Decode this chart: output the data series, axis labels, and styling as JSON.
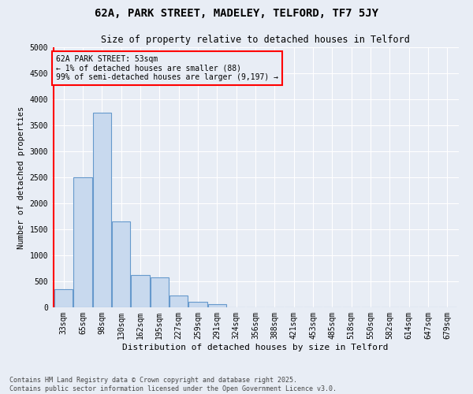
{
  "title": "62A, PARK STREET, MADELEY, TELFORD, TF7 5JY",
  "subtitle": "Size of property relative to detached houses in Telford",
  "xlabel": "Distribution of detached houses by size in Telford",
  "ylabel": "Number of detached properties",
  "bar_color": "#c8d9ee",
  "bar_edge_color": "#6699cc",
  "bg_color": "#e8edf5",
  "grid_color": "#ffffff",
  "categories": [
    "33sqm",
    "65sqm",
    "98sqm",
    "130sqm",
    "162sqm",
    "195sqm",
    "227sqm",
    "259sqm",
    "291sqm",
    "324sqm",
    "356sqm",
    "388sqm",
    "421sqm",
    "453sqm",
    "485sqm",
    "518sqm",
    "550sqm",
    "582sqm",
    "614sqm",
    "647sqm",
    "679sqm"
  ],
  "values": [
    350,
    2500,
    3750,
    1650,
    620,
    580,
    220,
    100,
    60,
    0,
    0,
    0,
    0,
    0,
    0,
    0,
    0,
    0,
    0,
    0,
    0
  ],
  "ylim": [
    0,
    5000
  ],
  "yticks": [
    0,
    500,
    1000,
    1500,
    2000,
    2500,
    3000,
    3500,
    4000,
    4500,
    5000
  ],
  "annotation_text": "62A PARK STREET: 53sqm\n← 1% of detached houses are smaller (88)\n99% of semi-detached houses are larger (9,197) →",
  "footnote": "Contains HM Land Registry data © Crown copyright and database right 2025.\nContains public sector information licensed under the Open Government Licence v3.0.",
  "title_fontsize": 10,
  "subtitle_fontsize": 8.5,
  "annotation_fontsize": 7,
  "ylabel_fontsize": 7.5,
  "xlabel_fontsize": 8,
  "tick_fontsize": 7,
  "footnote_fontsize": 6
}
